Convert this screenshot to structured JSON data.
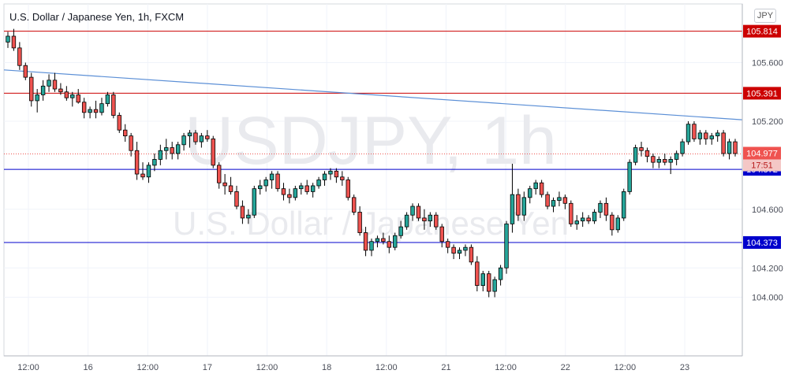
{
  "header": {
    "title": "U.S. Dollar / Japanese Yen, 1h, FXCM",
    "currency_badge": "JPY"
  },
  "watermark": {
    "symbol": "USDJPY, 1h",
    "name": "U.S. Dollar / Japanese Yen"
  },
  "colors": {
    "up": "#26a69a",
    "down": "#ef5350",
    "resistance": "#cc0000",
    "support": "#0000cc",
    "trendline": "#5b8fd6",
    "current_price": "#ef5350"
  },
  "chart_data": {
    "type": "candlestick",
    "ylim": [
      103.6,
      106.0
    ],
    "y_ticks": [
      104.0,
      104.2,
      104.6,
      105.2,
      105.6
    ],
    "x_tick_labels": [
      "12:00",
      "16",
      "12:00",
      "17",
      "12:00",
      "18",
      "12:00",
      "21",
      "12:00",
      "22",
      "12:00",
      "23"
    ],
    "horizontal_levels": [
      {
        "value": 105.814,
        "label": "105.814",
        "kind": "resistance"
      },
      {
        "value": 105.391,
        "label": "105.391",
        "kind": "resistance"
      },
      {
        "value": 104.872,
        "label": "104.872",
        "kind": "support"
      },
      {
        "value": 104.373,
        "label": "104.373",
        "kind": "support"
      }
    ],
    "trendline": {
      "from": 105.55,
      "to": 105.21
    },
    "current_price": {
      "value": 104.977,
      "label": "104.977",
      "countdown": "17:51"
    },
    "ohlc": [
      [
        105.74,
        105.81,
        105.7,
        105.78
      ],
      [
        105.78,
        105.83,
        105.68,
        105.7
      ],
      [
        105.7,
        105.74,
        105.55,
        105.58
      ],
      [
        105.58,
        105.6,
        105.48,
        105.5
      ],
      [
        105.5,
        105.53,
        105.3,
        105.34
      ],
      [
        105.34,
        105.42,
        105.26,
        105.38
      ],
      [
        105.38,
        105.48,
        105.34,
        105.44
      ],
      [
        105.44,
        105.52,
        105.4,
        105.48
      ],
      [
        105.48,
        105.53,
        105.4,
        105.42
      ],
      [
        105.42,
        105.46,
        105.38,
        105.4
      ],
      [
        105.4,
        105.44,
        105.34,
        105.36
      ],
      [
        105.36,
        105.4,
        105.3,
        105.38
      ],
      [
        105.38,
        105.42,
        105.32,
        105.33
      ],
      [
        105.33,
        105.36,
        105.22,
        105.26
      ],
      [
        105.26,
        105.3,
        105.22,
        105.28
      ],
      [
        105.28,
        105.34,
        105.22,
        105.26
      ],
      [
        105.26,
        105.36,
        105.24,
        105.32
      ],
      [
        105.32,
        105.4,
        105.3,
        105.38
      ],
      [
        105.38,
        105.4,
        105.22,
        105.24
      ],
      [
        105.24,
        105.26,
        105.12,
        105.14
      ],
      [
        105.14,
        105.18,
        105.06,
        105.1
      ],
      [
        105.1,
        105.12,
        104.96,
        105.0
      ],
      [
        105.0,
        105.06,
        104.8,
        104.84
      ],
      [
        104.84,
        104.92,
        104.8,
        104.82
      ],
      [
        104.82,
        104.92,
        104.78,
        104.9
      ],
      [
        104.9,
        104.98,
        104.86,
        104.94
      ],
      [
        104.94,
        105.04,
        104.9,
        105.0
      ],
      [
        105.0,
        105.08,
        104.94,
        105.02
      ],
      [
        105.02,
        105.06,
        104.94,
        104.98
      ],
      [
        104.98,
        105.06,
        104.94,
        105.04
      ],
      [
        105.04,
        105.12,
        105.0,
        105.1
      ],
      [
        105.1,
        105.14,
        105.02,
        105.12
      ],
      [
        105.12,
        105.14,
        105.04,
        105.06
      ],
      [
        105.06,
        105.12,
        105.02,
        105.1
      ],
      [
        105.1,
        105.14,
        105.06,
        105.08
      ],
      [
        105.08,
        105.1,
        104.88,
        104.9
      ],
      [
        104.9,
        104.92,
        104.74,
        104.78
      ],
      [
        104.78,
        104.84,
        104.7,
        104.76
      ],
      [
        104.76,
        104.82,
        104.7,
        104.72
      ],
      [
        104.72,
        104.76,
        104.6,
        104.62
      ],
      [
        104.62,
        104.66,
        104.5,
        104.54
      ],
      [
        104.54,
        104.6,
        104.5,
        104.56
      ],
      [
        104.56,
        104.76,
        104.54,
        104.74
      ],
      [
        104.74,
        104.8,
        104.7,
        104.76
      ],
      [
        104.76,
        104.82,
        104.72,
        104.8
      ],
      [
        104.8,
        104.86,
        104.74,
        104.84
      ],
      [
        104.84,
        104.86,
        104.72,
        104.74
      ],
      [
        104.74,
        104.78,
        104.66,
        104.7
      ],
      [
        104.7,
        104.74,
        104.64,
        104.68
      ],
      [
        104.68,
        104.76,
        104.66,
        104.74
      ],
      [
        104.74,
        104.78,
        104.7,
        104.76
      ],
      [
        104.76,
        104.8,
        104.7,
        104.72
      ],
      [
        104.72,
        104.78,
        104.68,
        104.76
      ],
      [
        104.76,
        104.82,
        104.74,
        104.8
      ],
      [
        104.8,
        104.86,
        104.76,
        104.84
      ],
      [
        104.84,
        104.88,
        104.8,
        104.86
      ],
      [
        104.86,
        104.88,
        104.78,
        104.82
      ],
      [
        104.82,
        104.86,
        104.76,
        104.8
      ],
      [
        104.8,
        104.82,
        104.66,
        104.68
      ],
      [
        104.68,
        104.7,
        104.56,
        104.58
      ],
      [
        104.58,
        104.62,
        104.42,
        104.44
      ],
      [
        104.44,
        104.48,
        104.28,
        104.32
      ],
      [
        104.32,
        104.4,
        104.28,
        104.38
      ],
      [
        104.38,
        104.42,
        104.34,
        104.4
      ],
      [
        104.4,
        104.44,
        104.36,
        104.38
      ],
      [
        104.38,
        104.42,
        104.3,
        104.34
      ],
      [
        104.34,
        104.44,
        104.32,
        104.42
      ],
      [
        104.42,
        104.52,
        104.4,
        104.48
      ],
      [
        104.48,
        104.58,
        104.46,
        104.56
      ],
      [
        104.56,
        104.64,
        104.52,
        104.62
      ],
      [
        104.62,
        104.64,
        104.52,
        104.54
      ],
      [
        104.54,
        104.6,
        104.46,
        104.52
      ],
      [
        104.52,
        104.58,
        104.48,
        104.56
      ],
      [
        104.56,
        104.58,
        104.46,
        104.48
      ],
      [
        104.48,
        104.5,
        104.34,
        104.38
      ],
      [
        104.38,
        104.4,
        104.3,
        104.34
      ],
      [
        104.34,
        104.36,
        104.26,
        104.3
      ],
      [
        104.3,
        104.34,
        104.26,
        104.32
      ],
      [
        104.32,
        104.36,
        104.28,
        104.34
      ],
      [
        104.34,
        104.36,
        104.22,
        104.24
      ],
      [
        104.24,
        104.28,
        104.04,
        104.08
      ],
      [
        104.08,
        104.18,
        104.04,
        104.16
      ],
      [
        104.16,
        104.18,
        104.0,
        104.04
      ],
      [
        104.04,
        104.14,
        104.0,
        104.12
      ],
      [
        104.12,
        104.22,
        104.08,
        104.2
      ],
      [
        104.2,
        104.52,
        104.16,
        104.5
      ],
      [
        104.5,
        104.91,
        104.44,
        104.7
      ],
      [
        104.7,
        104.74,
        104.52,
        104.56
      ],
      [
        104.56,
        104.72,
        104.52,
        104.68
      ],
      [
        104.68,
        104.76,
        104.64,
        104.74
      ],
      [
        104.74,
        104.8,
        104.7,
        104.78
      ],
      [
        104.78,
        104.8,
        104.68,
        104.7
      ],
      [
        104.7,
        104.72,
        104.6,
        104.62
      ],
      [
        104.62,
        104.68,
        104.58,
        104.66
      ],
      [
        104.66,
        104.72,
        104.62,
        104.68
      ],
      [
        104.68,
        104.7,
        104.6,
        104.64
      ],
      [
        104.64,
        104.66,
        104.48,
        104.5
      ],
      [
        104.5,
        104.56,
        104.46,
        104.52
      ],
      [
        104.52,
        104.58,
        104.48,
        104.54
      ],
      [
        104.54,
        104.56,
        104.5,
        104.52
      ],
      [
        104.52,
        104.6,
        104.5,
        104.58
      ],
      [
        104.58,
        104.66,
        104.54,
        104.64
      ],
      [
        104.64,
        104.68,
        104.52,
        104.56
      ],
      [
        104.56,
        104.58,
        104.42,
        104.46
      ],
      [
        104.46,
        104.56,
        104.44,
        104.54
      ],
      [
        104.54,
        104.74,
        104.52,
        104.72
      ],
      [
        104.72,
        104.94,
        104.7,
        104.92
      ],
      [
        104.92,
        105.04,
        104.9,
        105.02
      ],
      [
        105.02,
        105.06,
        104.96,
        105.0
      ],
      [
        105.0,
        105.02,
        104.92,
        104.96
      ],
      [
        104.96,
        104.98,
        104.88,
        104.92
      ],
      [
        104.92,
        104.96,
        104.88,
        104.94
      ],
      [
        104.94,
        104.98,
        104.9,
        104.92
      ],
      [
        104.92,
        104.96,
        104.84,
        104.94
      ],
      [
        104.94,
        105.0,
        104.9,
        104.98
      ],
      [
        104.98,
        105.08,
        104.96,
        105.06
      ],
      [
        105.06,
        105.2,
        105.04,
        105.18
      ],
      [
        105.18,
        105.2,
        105.06,
        105.08
      ],
      [
        105.08,
        105.14,
        105.04,
        105.12
      ],
      [
        105.12,
        105.14,
        105.04,
        105.08
      ],
      [
        105.08,
        105.12,
        105.04,
        105.1
      ],
      [
        105.1,
        105.14,
        105.06,
        105.12
      ],
      [
        105.12,
        105.14,
        104.96,
        104.98
      ],
      [
        104.98,
        105.08,
        104.94,
        105.06
      ],
      [
        105.06,
        105.08,
        104.96,
        104.98
      ]
    ]
  }
}
